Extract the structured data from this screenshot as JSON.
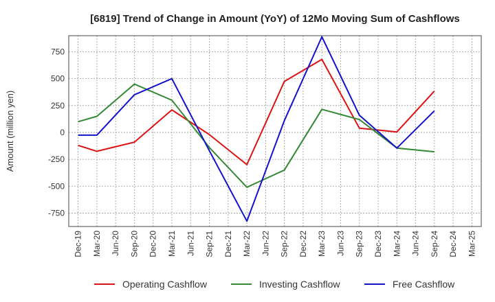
{
  "chart_data": {
    "type": "line",
    "title": "[6819]  Trend of Change in Amount (YoY) of 12Mo Moving Sum of Cashflows",
    "xlabel": "",
    "ylabel": "Amount (million yen)",
    "categories": [
      "Dec-19",
      "Mar-20",
      "Jun-20",
      "Sep-20",
      "Dec-20",
      "Mar-21",
      "Jun-21",
      "Sep-21",
      "Dec-21",
      "Mar-22",
      "Jun-22",
      "Sep-22",
      "Dec-22",
      "Mar-23",
      "Jun-23",
      "Sep-23",
      "Dec-23",
      "Mar-24",
      "Jun-24",
      "Sep-24",
      "Dec-24",
      "Mar-25"
    ],
    "ylim": [
      -875,
      900
    ],
    "yticks": [
      -750,
      -500,
      -250,
      0,
      250,
      500,
      750
    ],
    "ytick_labels": [
      "-750",
      "-500",
      "-250",
      "0",
      "250",
      "500",
      "750"
    ],
    "grid": true,
    "legend_position": "bottom",
    "series": [
      {
        "name": "Operating Cashflow",
        "color": "#dd1111",
        "values": [
          -120,
          -175,
          null,
          -90,
          null,
          210,
          null,
          -20,
          null,
          -300,
          null,
          475,
          null,
          680,
          null,
          40,
          null,
          5,
          null,
          385,
          null,
          null
        ]
      },
      {
        "name": "Investing Cashflow",
        "color": "#338833",
        "values": [
          100,
          150,
          null,
          450,
          null,
          300,
          null,
          -140,
          null,
          -510,
          null,
          -350,
          null,
          215,
          null,
          120,
          null,
          -145,
          null,
          -180,
          null,
          null
        ]
      },
      {
        "name": "Free Cashflow",
        "color": "#1111cc",
        "values": [
          -25,
          -25,
          null,
          350,
          null,
          500,
          null,
          -170,
          null,
          -825,
          null,
          110,
          null,
          890,
          null,
          160,
          null,
          -145,
          null,
          200,
          null,
          null
        ]
      }
    ]
  }
}
